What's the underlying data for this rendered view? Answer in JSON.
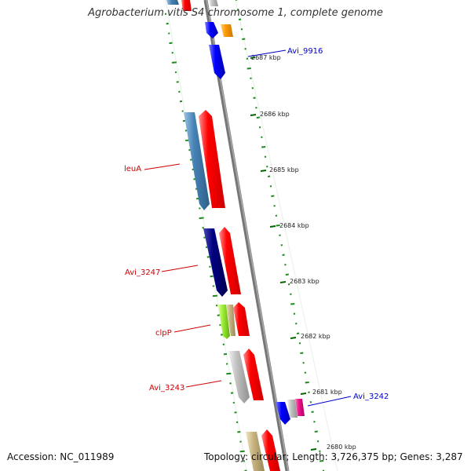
{
  "title": "Agrobacterium vitis S4 chromosome 1, complete genome",
  "footer": {
    "accession": "Accession: NC_011989",
    "topology": "Topology: circular; Length: 3,726,375 bp; Genes: 3,287"
  },
  "scale_ticks": [
    "2687 kbp",
    "2686 kbp",
    "2685 kbp",
    "2684 kbp",
    "2683 kbp",
    "2682 kbp",
    "2681 kbp",
    "2680 kbp"
  ],
  "gene_labels": [
    {
      "text": "Avi_9916",
      "color": "#0000cc"
    },
    {
      "text": "leuA",
      "color": "#cc0000"
    },
    {
      "text": "Avi_3247",
      "color": "#cc0000"
    },
    {
      "text": "clpP",
      "color": "#cc0000"
    },
    {
      "text": "Avi_3243",
      "color": "#cc0000"
    },
    {
      "text": "Avi_3242",
      "color": "#0000cc"
    }
  ],
  "colors": {
    "axis": "#888888",
    "dots": "#228b22",
    "forward_strand": "#ff0000",
    "steel_blue": "#4682b4",
    "navy": "#000080",
    "blue": "#0000ff",
    "orange": "#ff9900",
    "yellow_green": "#99ee33",
    "tan": "#c8b482",
    "silver": "#c0c0c0",
    "magenta": "#ee1188"
  }
}
